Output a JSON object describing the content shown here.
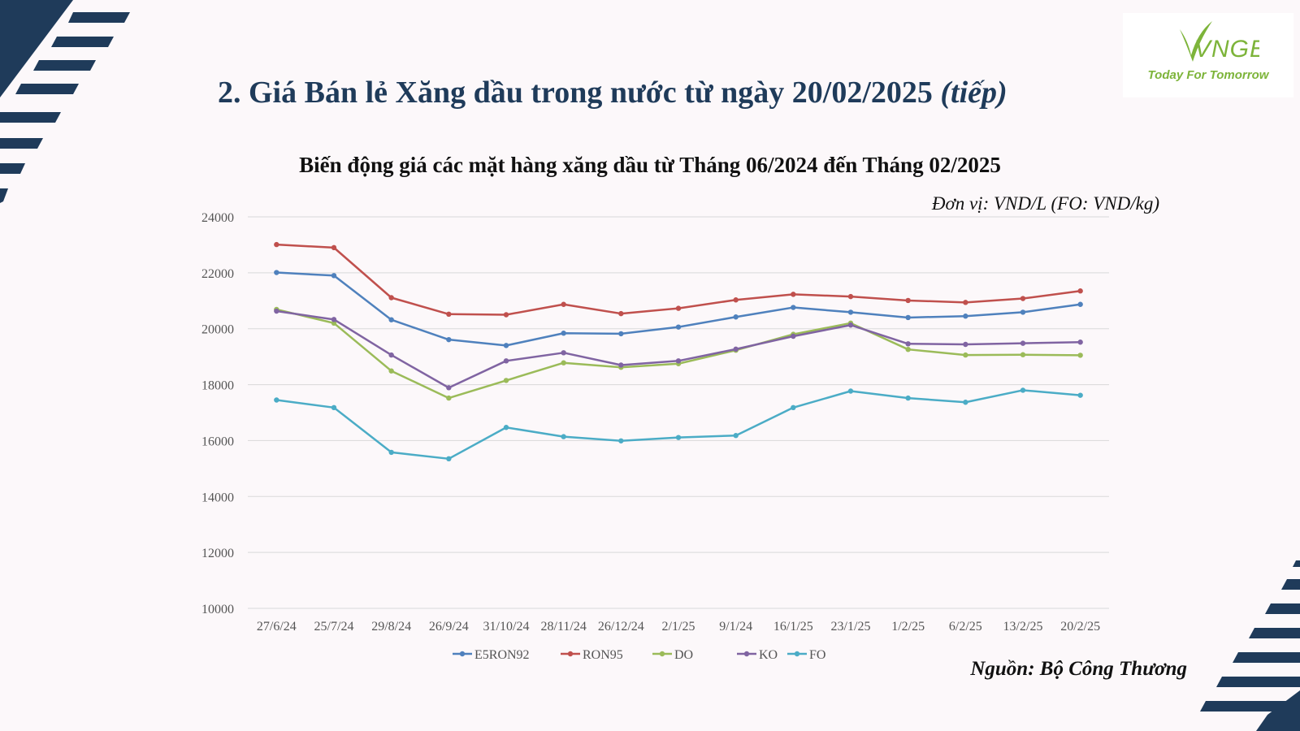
{
  "header": {
    "title": "2. Giá Bán lẻ Xăng dầu trong nước từ ngày 20/02/2025",
    "title_suffix": "(tiếp)"
  },
  "logo": {
    "text": "VNGE",
    "tagline": "Today For Tomorrow",
    "color": "#7db43a"
  },
  "unit_note": "Đơn vị: VND/L (FO: VND/kg)",
  "source_note": "Nguồn: Bộ Công Thương",
  "colors": {
    "navy": "#1f3b5a",
    "background": "#fcf8fa"
  },
  "chart_data": {
    "type": "line",
    "title": "Biến động giá các mặt hàng xăng dầu từ Tháng 06/2024 đến Tháng 02/2025",
    "xlabel": "",
    "ylabel": "",
    "ylim": [
      10000,
      24000
    ],
    "yticks": [
      24000,
      22000,
      20000,
      18000,
      16000,
      14000,
      12000,
      10000
    ],
    "grid": true,
    "legend_position": "bottom",
    "categories": [
      "27/6/24",
      "25/7/24",
      "29/8/24",
      "26/9/24",
      "31/10/24",
      "28/11/24",
      "26/12/24",
      "2/1/25",
      "9/1/24",
      "16/1/25",
      "23/1/25",
      "1/2/25",
      "6/2/25",
      "13/2/25",
      "20/2/25"
    ],
    "series": [
      {
        "name": "E5RON92",
        "color": "#4f81bd",
        "values": [
          22010,
          21900,
          20320,
          19610,
          19400,
          19840,
          19820,
          20060,
          20420,
          20760,
          20590,
          20400,
          20450,
          20590,
          20870
        ]
      },
      {
        "name": "RON95",
        "color": "#c0504d",
        "values": [
          23010,
          22900,
          21110,
          20520,
          20500,
          20870,
          20540,
          20730,
          21030,
          21230,
          21150,
          21010,
          20940,
          21080,
          21350
        ]
      },
      {
        "name": "DO",
        "color": "#9bbb59",
        "values": [
          20690,
          20200,
          18490,
          17520,
          18150,
          18780,
          18620,
          18750,
          19230,
          19800,
          20200,
          19260,
          19060,
          19070,
          19050
        ]
      },
      {
        "name": "KO",
        "color": "#8064a2",
        "values": [
          20630,
          20330,
          19060,
          17890,
          18850,
          19140,
          18700,
          18850,
          19270,
          19730,
          20130,
          19460,
          19440,
          19480,
          19520
        ]
      },
      {
        "name": "FO",
        "color": "#4bacc6",
        "values": [
          17450,
          17180,
          15580,
          15350,
          16470,
          16140,
          15990,
          16110,
          16180,
          17180,
          17770,
          17520,
          17370,
          17800,
          17620
        ]
      }
    ]
  }
}
